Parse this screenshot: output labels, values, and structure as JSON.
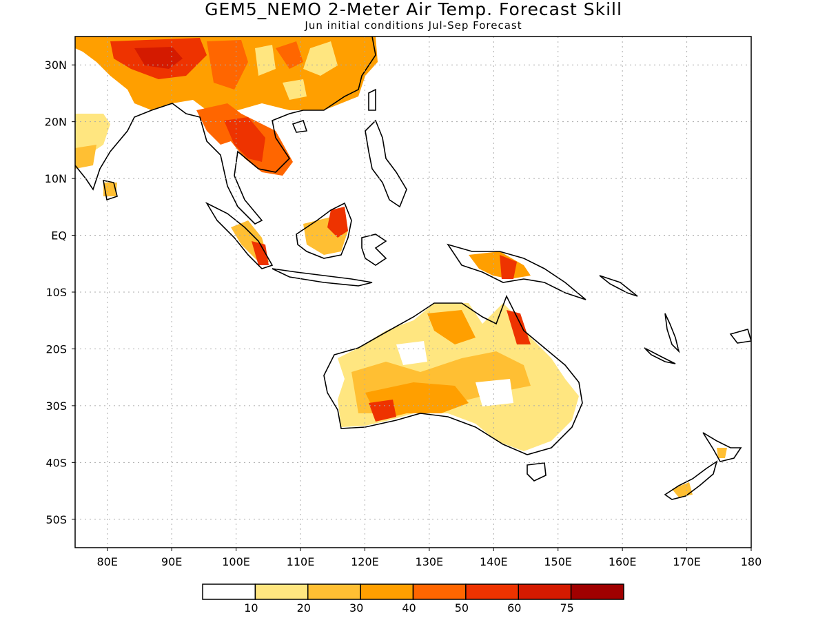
{
  "header": {
    "title": "GEM5_NEMO 2-Meter Air Temp. Forecast Skill",
    "subtitle": "Jun initial conditions  Jul-Sep Forecast"
  },
  "map": {
    "lon_range": [
      75,
      180
    ],
    "lat_range": [
      -55,
      35
    ],
    "lat_ticks": [
      {
        "value": 30,
        "label": "30N"
      },
      {
        "value": 20,
        "label": "20N"
      },
      {
        "value": 10,
        "label": "10N"
      },
      {
        "value": 0,
        "label": "EQ"
      },
      {
        "value": -10,
        "label": "10S"
      },
      {
        "value": -20,
        "label": "20S"
      },
      {
        "value": -30,
        "label": "30S"
      },
      {
        "value": -40,
        "label": "40S"
      },
      {
        "value": -50,
        "label": "50S"
      }
    ],
    "lon_ticks": [
      {
        "value": 80,
        "label": "80E"
      },
      {
        "value": 90,
        "label": "90E"
      },
      {
        "value": 100,
        "label": "100E"
      },
      {
        "value": 110,
        "label": "110E"
      },
      {
        "value": 120,
        "label": "120E"
      },
      {
        "value": 130,
        "label": "130E"
      },
      {
        "value": 140,
        "label": "140E"
      },
      {
        "value": 150,
        "label": "150E"
      },
      {
        "value": 160,
        "label": "160E"
      },
      {
        "value": 170,
        "label": "170E"
      },
      {
        "value": 180,
        "label": "180"
      }
    ]
  },
  "colorbar": {
    "colors": [
      "#ffffff",
      "#ffe680",
      "#ffbf33",
      "#ff9f00",
      "#ff6600",
      "#ee3300",
      "#d41a00",
      "#a00000"
    ],
    "labels": [
      "10",
      "20",
      "30",
      "40",
      "50",
      "60",
      "75"
    ]
  },
  "palette": {
    "coast": "#000000",
    "grid": "#aaaaaa"
  }
}
